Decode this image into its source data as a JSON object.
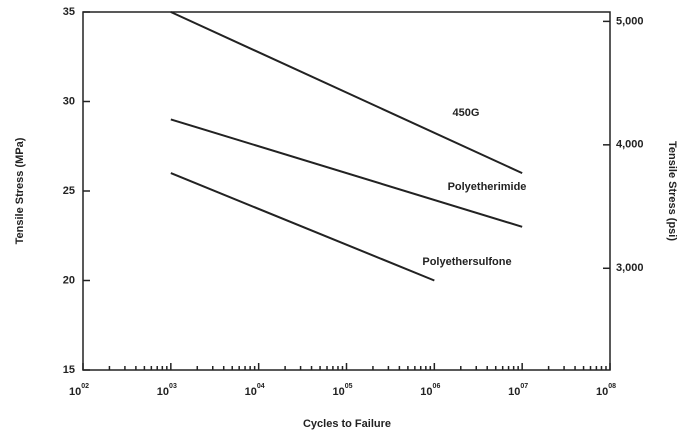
{
  "chart_data": {
    "type": "line",
    "x_label": "Cycles to Failure",
    "y_label": "Tensile Stress (MPa)",
    "y2_label": "Tensile Stress (psi)",
    "xscale": "log",
    "xlim": [
      100,
      100000000
    ],
    "xticks": [
      {
        "value": 100,
        "label": "10",
        "sup": "02"
      },
      {
        "value": 1000,
        "label": "10",
        "sup": "03"
      },
      {
        "value": 10000,
        "label": "10",
        "sup": "04"
      },
      {
        "value": 100000,
        "label": "10",
        "sup": "05"
      },
      {
        "value": 1000000,
        "label": "10",
        "sup": "06"
      },
      {
        "value": 10000000,
        "label": "10",
        "sup": "07"
      },
      {
        "value": 100000000,
        "label": "10",
        "sup": "08"
      }
    ],
    "ylim": [
      15,
      35
    ],
    "yticks": [
      15,
      20,
      25,
      30,
      35
    ],
    "y2lim": [
      2176,
      5076
    ],
    "y2ticks": [
      {
        "value": 3000,
        "label": "3,000"
      },
      {
        "value": 4000,
        "label": "4,000"
      },
      {
        "value": 5000,
        "label": "5,000"
      }
    ],
    "series": [
      {
        "name": "450G",
        "color": "#222222",
        "x": [
          1000,
          10000000
        ],
        "values": [
          35,
          26
        ]
      },
      {
        "name": "Polyetherimide",
        "color": "#222222",
        "x": [
          1000,
          10000000
        ],
        "values": [
          29,
          23
        ]
      },
      {
        "name": "Polyethersulfone",
        "color": "#222222",
        "x": [
          1000,
          1000000
        ],
        "values": [
          26,
          20
        ]
      }
    ]
  }
}
